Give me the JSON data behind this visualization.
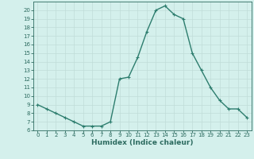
{
  "x": [
    0,
    1,
    2,
    3,
    4,
    5,
    6,
    7,
    8,
    9,
    10,
    11,
    12,
    13,
    14,
    15,
    16,
    17,
    18,
    19,
    20,
    21,
    22,
    23
  ],
  "y": [
    9.0,
    8.5,
    8.0,
    7.5,
    7.0,
    6.5,
    6.5,
    6.5,
    7.0,
    12.0,
    12.2,
    14.5,
    17.5,
    20.0,
    20.5,
    19.5,
    19.0,
    15.0,
    13.0,
    11.0,
    9.5,
    8.5,
    8.5,
    7.5
  ],
  "line_color": "#2d7d6e",
  "bg_color": "#d4f0ec",
  "grid_color": "#c0ddd8",
  "xlabel": "Humidex (Indice chaleur)",
  "xlabel_color": "#2d6b60",
  "tick_color": "#2d6b60",
  "ylim": [
    6,
    21
  ],
  "xlim": [
    -0.5,
    23.5
  ],
  "yticks": [
    6,
    7,
    8,
    9,
    10,
    11,
    12,
    13,
    14,
    15,
    16,
    17,
    18,
    19,
    20
  ],
  "xticks": [
    0,
    1,
    2,
    3,
    4,
    5,
    6,
    7,
    8,
    9,
    10,
    11,
    12,
    13,
    14,
    15,
    16,
    17,
    18,
    19,
    20,
    21,
    22,
    23
  ],
  "marker": "+",
  "marker_size": 3,
  "line_width": 1.0,
  "tick_fontsize": 5.0,
  "xlabel_fontsize": 6.5
}
